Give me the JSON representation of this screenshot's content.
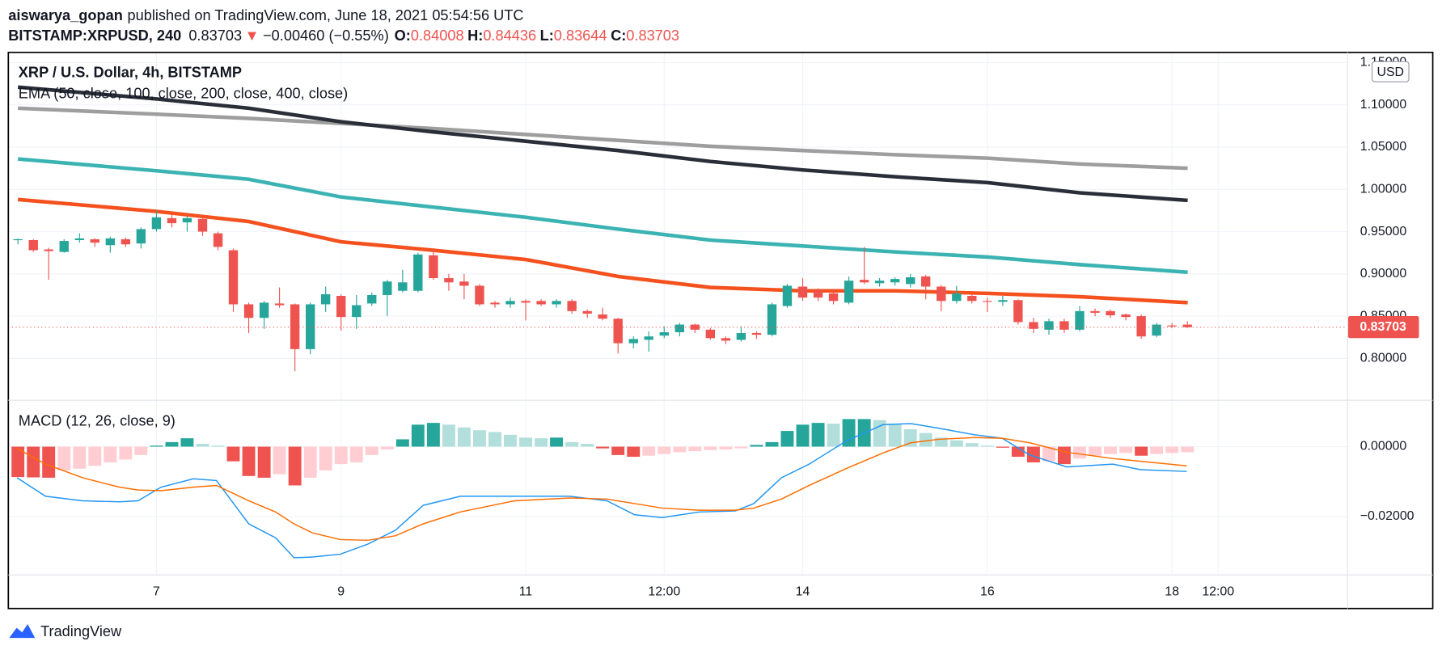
{
  "header": {
    "author": "aiswarya_gopan",
    "published": "published on TradingView.com, June 18, 2021 05:54:56 UTC",
    "symbol": "BITSTAMP:XRPUSD, 240",
    "last": "0.83703",
    "direction": "▼",
    "change": "−0.00460 (−0.55%)",
    "ohlc": [
      {
        "label": "O:",
        "value": "0.84008"
      },
      {
        "label": "H:",
        "value": "0.84436"
      },
      {
        "label": "L:",
        "value": "0.83644"
      },
      {
        "label": "C:",
        "value": "0.83703"
      }
    ]
  },
  "brand": "TradingView",
  "chart_data": [
    {
      "type": "candlestick",
      "title": "XRP / U.S. Dollar, 4h, BITSTAMP",
      "indicator": "EMA (50, close, 100, close, 200, close, 400, close)",
      "currency": "USD",
      "up_color": "#26a69a",
      "down_color": "#ef5350",
      "last_price": 0.83703,
      "grid": true,
      "xlim": [
        5.396,
        19.898
      ],
      "xticks": [
        {
          "value": 7,
          "label": "7"
        },
        {
          "value": 9,
          "label": "9"
        },
        {
          "value": 11,
          "label": "11"
        },
        {
          "value": 12.5,
          "label": "12:00"
        },
        {
          "value": 14,
          "label": "14"
        },
        {
          "value": 16,
          "label": "16"
        },
        {
          "value": 18,
          "label": "18"
        },
        {
          "value": 18.5,
          "label": "12:00"
        }
      ],
      "ylim": [
        0.751,
        1.161
      ],
      "yticks": [
        {
          "value": 0.8,
          "label": "0.80000"
        },
        {
          "value": 0.85,
          "label": "0.85000"
        },
        {
          "value": 0.9,
          "label": "0.90000"
        },
        {
          "value": 0.95,
          "label": "0.95000"
        },
        {
          "value": 1.0,
          "label": "1.00000"
        },
        {
          "value": 1.05,
          "label": "1.05000"
        },
        {
          "value": 1.1,
          "label": "1.10000"
        },
        {
          "value": 1.15,
          "label": "1.15000"
        }
      ],
      "x": [
        5.5,
        5.667,
        5.833,
        6,
        6.167,
        6.333,
        6.5,
        6.667,
        6.833,
        7,
        7.167,
        7.333,
        7.5,
        7.667,
        7.833,
        8,
        8.167,
        8.333,
        8.5,
        8.667,
        8.833,
        9,
        9.167,
        9.333,
        9.5,
        9.667,
        9.833,
        10,
        10.167,
        10.333,
        10.5,
        10.667,
        10.833,
        11,
        11.167,
        11.333,
        11.5,
        11.667,
        11.833,
        12,
        12.167,
        12.333,
        12.5,
        12.667,
        12.833,
        13,
        13.167,
        13.333,
        13.5,
        13.667,
        13.833,
        14,
        14.167,
        14.333,
        14.5,
        14.667,
        14.833,
        15,
        15.167,
        15.333,
        15.5,
        15.667,
        15.833,
        16,
        16.167,
        16.333,
        16.5,
        16.667,
        16.833,
        17,
        17.167,
        17.333,
        17.5,
        17.667,
        17.833,
        18,
        18.167
      ],
      "open": [
        0.94,
        0.94,
        0.929,
        0.926,
        0.94,
        0.941,
        0.934,
        0.941,
        0.936,
        0.953,
        0.966,
        0.961,
        0.965,
        0.948,
        0.928,
        0.864,
        0.848,
        0.865,
        0.864,
        0.811,
        0.864,
        0.874,
        0.849,
        0.865,
        0.875,
        0.88,
        0.88,
        0.922,
        0.895,
        0.891,
        0.886,
        0.866,
        0.864,
        0.868,
        0.868,
        0.864,
        0.868,
        0.856,
        0.852,
        0.847,
        0.818,
        0.822,
        0.827,
        0.831,
        0.84,
        0.834,
        0.824,
        0.822,
        0.83,
        0.828,
        0.862,
        0.885,
        0.88,
        0.877,
        0.866,
        0.893,
        0.889,
        0.89,
        0.888,
        0.897,
        0.885,
        0.868,
        0.874,
        0.868,
        0.867,
        0.869,
        0.843,
        0.834,
        0.844,
        0.834,
        0.856,
        0.856,
        0.852,
        0.85,
        0.827,
        0.839,
        0.84
      ],
      "high": [
        0.942,
        0.941,
        0.931,
        0.941,
        0.948,
        0.942,
        0.944,
        0.943,
        0.955,
        0.975,
        0.97,
        0.968,
        0.967,
        0.95,
        0.93,
        0.866,
        0.868,
        0.884,
        0.865,
        0.866,
        0.885,
        0.876,
        0.875,
        0.878,
        0.893,
        0.905,
        0.925,
        0.93,
        0.9,
        0.9,
        0.888,
        0.868,
        0.872,
        0.87,
        0.87,
        0.87,
        0.87,
        0.858,
        0.86,
        0.848,
        0.826,
        0.832,
        0.838,
        0.842,
        0.841,
        0.836,
        0.826,
        0.838,
        0.832,
        0.866,
        0.888,
        0.895,
        0.883,
        0.88,
        0.897,
        0.932,
        0.895,
        0.896,
        0.9,
        0.899,
        0.887,
        0.886,
        0.876,
        0.872,
        0.874,
        0.87,
        0.848,
        0.847,
        0.847,
        0.862,
        0.859,
        0.858,
        0.853,
        0.852,
        0.842,
        0.842,
        0.844
      ],
      "low": [
        0.935,
        0.926,
        0.893,
        0.925,
        0.937,
        0.932,
        0.925,
        0.932,
        0.93,
        0.95,
        0.955,
        0.95,
        0.945,
        0.928,
        0.855,
        0.83,
        0.835,
        0.86,
        0.785,
        0.805,
        0.855,
        0.833,
        0.835,
        0.862,
        0.85,
        0.878,
        0.878,
        0.893,
        0.88,
        0.87,
        0.862,
        0.86,
        0.86,
        0.845,
        0.862,
        0.86,
        0.853,
        0.848,
        0.845,
        0.806,
        0.812,
        0.808,
        0.824,
        0.826,
        0.83,
        0.822,
        0.817,
        0.82,
        0.823,
        0.826,
        0.86,
        0.868,
        0.868,
        0.864,
        0.864,
        0.888,
        0.885,
        0.886,
        0.884,
        0.87,
        0.856,
        0.865,
        0.865,
        0.855,
        0.862,
        0.84,
        0.83,
        0.828,
        0.83,
        0.832,
        0.85,
        0.848,
        0.845,
        0.823,
        0.825,
        0.836,
        0.836
      ],
      "close": [
        0.941,
        0.928,
        0.927,
        0.939,
        0.942,
        0.937,
        0.942,
        0.935,
        0.953,
        0.967,
        0.96,
        0.966,
        0.95,
        0.932,
        0.864,
        0.848,
        0.866,
        0.863,
        0.811,
        0.864,
        0.876,
        0.849,
        0.863,
        0.875,
        0.891,
        0.89,
        0.923,
        0.895,
        0.89,
        0.886,
        0.864,
        0.864,
        0.868,
        0.866,
        0.864,
        0.868,
        0.856,
        0.853,
        0.847,
        0.818,
        0.823,
        0.826,
        0.831,
        0.84,
        0.834,
        0.824,
        0.821,
        0.83,
        0.828,
        0.864,
        0.886,
        0.872,
        0.872,
        0.868,
        0.892,
        0.89,
        0.892,
        0.894,
        0.896,
        0.885,
        0.868,
        0.877,
        0.868,
        0.867,
        0.869,
        0.843,
        0.835,
        0.844,
        0.834,
        0.856,
        0.854,
        0.851,
        0.849,
        0.826,
        0.84,
        0.838,
        0.837
      ],
      "series": [
        {
          "color": "#9e9e9e",
          "x": [
            5.5,
            7,
            8,
            9,
            10,
            11,
            12,
            13,
            14,
            15,
            16,
            17,
            18.17
          ],
          "values": [
            1.096,
            1.089,
            1.084,
            1.078,
            1.072,
            1.065,
            1.058,
            1.051,
            1.046,
            1.041,
            1.037,
            1.03,
            1.025
          ]
        },
        {
          "color": "#2a2e39",
          "x": [
            5.5,
            7,
            8,
            9,
            10,
            11,
            12,
            13,
            14,
            15,
            16,
            17,
            18.17
          ],
          "values": [
            1.121,
            1.107,
            1.096,
            1.08,
            1.068,
            1.057,
            1.046,
            1.033,
            1.023,
            1.015,
            1.008,
            0.996,
            0.987
          ]
        },
        {
          "color": "#3bb3b3",
          "x": [
            5.5,
            7,
            8,
            9,
            10,
            11,
            12,
            13,
            14,
            15,
            16,
            17,
            18.17
          ],
          "values": [
            1.036,
            1.022,
            1.012,
            0.991,
            0.979,
            0.967,
            0.953,
            0.94,
            0.933,
            0.926,
            0.92,
            0.911,
            0.902
          ]
        },
        {
          "color": "#f4511e",
          "x": [
            5.5,
            7,
            8,
            9,
            10,
            11,
            12,
            13,
            14,
            15,
            16,
            17,
            18.17
          ],
          "values": [
            0.988,
            0.974,
            0.962,
            0.938,
            0.928,
            0.917,
            0.897,
            0.884,
            0.88,
            0.88,
            0.877,
            0.873,
            0.866
          ]
        }
      ]
    },
    {
      "type": "macd",
      "title": "MACD (12, 26, close, 9)",
      "grid": true,
      "ylim": [
        -0.0366,
        0.0134
      ],
      "yticks": [
        {
          "value": 0,
          "label": "0.00000"
        },
        {
          "value": -0.02,
          "label": "−0.02000"
        }
      ],
      "histogram_colors": [
        "#26a69a",
        "#b2dfdb",
        "#ef5350",
        "#ffcdd2"
      ],
      "histogram": [
        -0.0087,
        -0.0088,
        -0.0089,
        -0.0068,
        -0.0063,
        -0.0055,
        -0.0045,
        -0.0037,
        -0.0024,
        0.0003,
        0.0013,
        0.0024,
        0.0008,
        0.0003,
        -0.0042,
        -0.0084,
        -0.0089,
        -0.0079,
        -0.0111,
        -0.0089,
        -0.0068,
        -0.005,
        -0.0045,
        -0.0024,
        -0.0008,
        0.0021,
        0.0063,
        0.0068,
        0.0063,
        0.0055,
        0.0047,
        0.0042,
        0.0034,
        0.0026,
        0.0024,
        0.0026,
        0.0013,
        0.0008,
        -0.0005,
        -0.0024,
        -0.0029,
        -0.0026,
        -0.0021,
        -0.0016,
        -0.0013,
        -0.001,
        -0.0008,
        -0.0005,
        0.0005,
        0.0013,
        0.0045,
        0.0063,
        0.0068,
        0.0066,
        0.0079,
        0.0079,
        0.0076,
        0.0066,
        0.005,
        0.0039,
        0.0026,
        0.0018,
        0.001,
        0.0003,
        -0.0003,
        -0.0029,
        -0.0045,
        -0.0042,
        -0.005,
        -0.0034,
        -0.0026,
        -0.0021,
        -0.0018,
        -0.0026,
        -0.0021,
        -0.0018,
        -0.0016
      ],
      "series": [
        {
          "color": "#2196f3",
          "x": [
            5.49,
            5.8,
            6.2,
            6.6,
            6.8,
            7.05,
            7.4,
            7.65,
            8.0,
            8.29,
            8.49,
            8.69,
            8.99,
            9.29,
            9.59,
            9.89,
            10.29,
            10.88,
            11.48,
            11.88,
            12.18,
            12.48,
            12.88,
            13.27,
            13.47,
            13.77,
            14.07,
            14.47,
            14.87,
            15.17,
            15.47,
            15.86,
            16.16,
            16.46,
            16.86,
            17.36,
            17.66,
            18.16
          ],
          "values": [
            -0.0089,
            -0.0142,
            -0.0155,
            -0.0158,
            -0.0155,
            -0.0116,
            -0.0092,
            -0.0097,
            -0.0221,
            -0.0261,
            -0.0318,
            -0.0316,
            -0.0308,
            -0.0279,
            -0.0239,
            -0.0168,
            -0.0142,
            -0.0142,
            -0.0142,
            -0.0155,
            -0.0195,
            -0.0203,
            -0.0187,
            -0.0184,
            -0.0163,
            -0.0089,
            -0.005,
            0.0016,
            0.0063,
            0.0066,
            0.0053,
            0.0034,
            0.0024,
            -0.0024,
            -0.0058,
            -0.005,
            -0.0066,
            -0.0071
          ]
        },
        {
          "color": "#ff6d00",
          "x": [
            5.49,
            5.8,
            6.2,
            6.6,
            6.8,
            7.05,
            7.4,
            7.65,
            8.0,
            8.29,
            8.49,
            8.69,
            8.99,
            9.29,
            9.59,
            9.89,
            10.29,
            10.88,
            11.48,
            11.88,
            12.18,
            12.48,
            12.88,
            13.27,
            13.47,
            13.77,
            14.07,
            14.47,
            14.87,
            15.17,
            15.47,
            15.86,
            16.16,
            16.46,
            16.86,
            17.36,
            17.66,
            18.16
          ],
          "values": [
            -0.0005,
            -0.005,
            -0.0089,
            -0.0116,
            -0.0124,
            -0.0126,
            -0.0116,
            -0.0111,
            -0.0155,
            -0.0187,
            -0.0221,
            -0.0247,
            -0.0266,
            -0.0268,
            -0.0255,
            -0.0221,
            -0.0187,
            -0.0155,
            -0.0147,
            -0.015,
            -0.0163,
            -0.0176,
            -0.0182,
            -0.0182,
            -0.0176,
            -0.015,
            -0.0111,
            -0.0063,
            -0.0018,
            0.0011,
            0.0021,
            0.0026,
            0.0024,
            0.0011,
            -0.0016,
            -0.0034,
            -0.0042,
            -0.0055
          ]
        }
      ]
    }
  ]
}
